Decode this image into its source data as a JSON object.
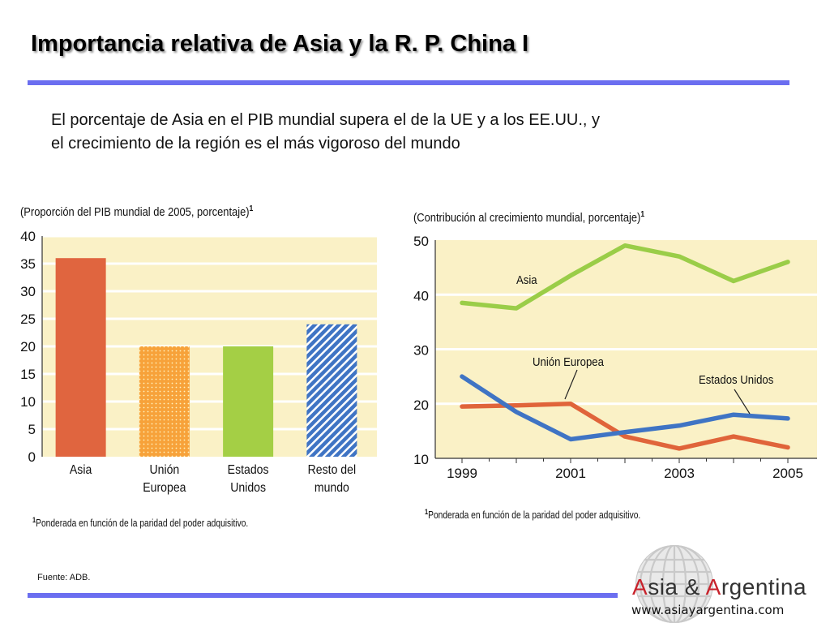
{
  "slide": {
    "title": "Importancia relativa de Asia y la R. P. China I",
    "intro_line1": "El porcentaje de Asia en el PIB mundial supera el de la UE y a los EE.UU., y",
    "intro_line2": "el crecimiento de la región es el más vigoroso del mundo",
    "source": "Fuente: ADB.",
    "logo_prefix": "A",
    "logo_mid": "sia & ",
    "logo_prefix2": "A",
    "logo_suffix": "rgentina",
    "logo_url": "www.asiayargentina.com",
    "accent_color": "#6b6ef0"
  },
  "bar_panel": {
    "caption": "(Proporción del PIB mundial de 2005, porcentaje)",
    "caption_sup": "1",
    "footnote_sup": "1",
    "footnote": "Ponderada en función de la paridad del poder adquisitivo."
  },
  "line_panel": {
    "caption": "(Contribución al crecimiento mundial, porcentaje)",
    "caption_sup": "1",
    "footnote_sup": "1",
    "footnote": "Ponderada en función de la paridad del poder adquisitivo."
  },
  "chart_data": [
    {
      "type": "bar",
      "title": "(Proporción del PIB mundial de 2005, porcentaje)",
      "categories": [
        [
          "Asia"
        ],
        [
          "Unión",
          "Europea"
        ],
        [
          "Estados",
          "Unidos"
        ],
        [
          "Resto del",
          "mundo"
        ]
      ],
      "values": [
        36,
        20,
        20,
        24
      ],
      "colors": [
        "#e0653f",
        "#f7a23a",
        "#a4cf45",
        "#3f74c4"
      ],
      "patterns": [
        "solid",
        "dots",
        "solid",
        "stripes"
      ],
      "ylim": [
        0,
        40
      ],
      "yticks": [
        0,
        5,
        10,
        15,
        20,
        25,
        30,
        35,
        40
      ],
      "grid": true,
      "background": "#faf1c6"
    },
    {
      "type": "line",
      "title": "(Contribución al crecimiento mundial, porcentaje)",
      "x": [
        1999,
        2000,
        2001,
        2002,
        2003,
        2004,
        2005
      ],
      "xticks": [
        1999,
        2001,
        2003,
        2005
      ],
      "ylim": [
        10,
        50
      ],
      "yticks": [
        10,
        20,
        30,
        40,
        50
      ],
      "grid": true,
      "background": "#faf1c6",
      "series": [
        {
          "name": "Asia",
          "color": "#9acd48",
          "values": [
            38.5,
            37.5,
            43.5,
            49,
            47,
            42.5,
            46
          ]
        },
        {
          "name": "Unión Europea",
          "color": "#e0643a",
          "values": [
            19.5,
            19.7,
            20,
            14,
            11.8,
            14,
            12
          ]
        },
        {
          "name": "Estados Unidos",
          "color": "#3f74c4",
          "values": [
            25,
            18.5,
            13.5,
            14.8,
            16,
            18,
            17.3
          ]
        }
      ]
    }
  ]
}
